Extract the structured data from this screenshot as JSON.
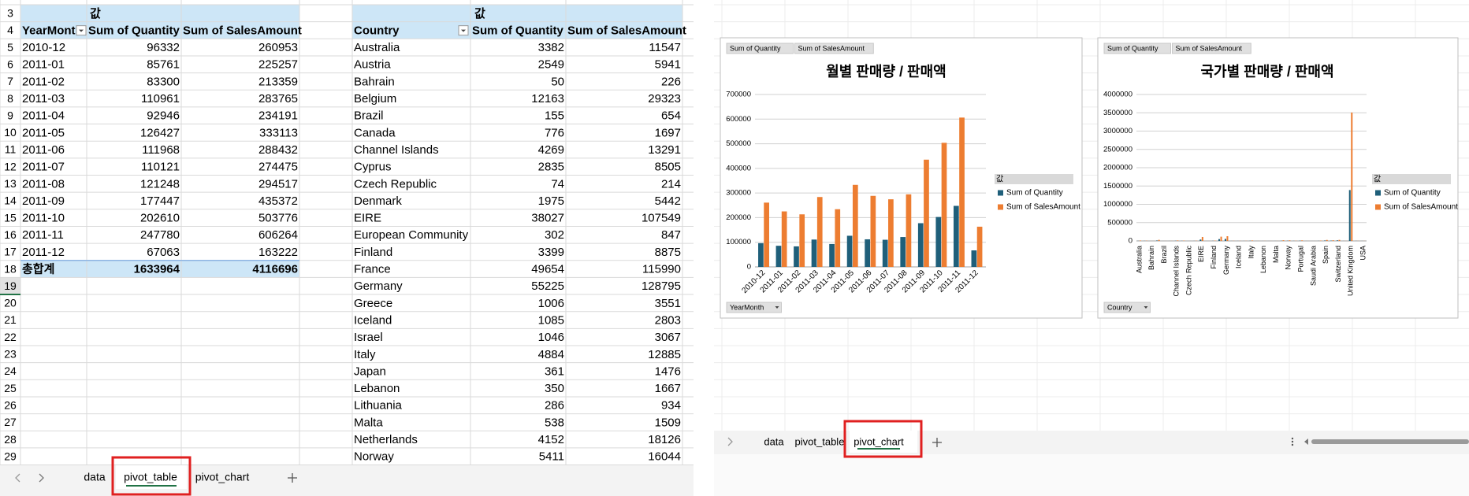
{
  "sheet": {
    "row_numbers": [
      3,
      4,
      5,
      6,
      7,
      8,
      9,
      10,
      11,
      12,
      13,
      14,
      15,
      16,
      17,
      18,
      19,
      20,
      21,
      22,
      23,
      24,
      25,
      26,
      27,
      28,
      29
    ],
    "pivot1": {
      "values_caption": "값",
      "headers": [
        "YearMont",
        "Sum of Quantity",
        "Sum of SalesAmount"
      ],
      "rows": [
        [
          "2010-12",
          96332,
          260953
        ],
        [
          "2011-01",
          85761,
          225257
        ],
        [
          "2011-02",
          83300,
          213359
        ],
        [
          "2011-03",
          110961,
          283765
        ],
        [
          "2011-04",
          92946,
          234191
        ],
        [
          "2011-05",
          126427,
          333113
        ],
        [
          "2011-06",
          111968,
          288432
        ],
        [
          "2011-07",
          110121,
          274475
        ],
        [
          "2011-08",
          121248,
          294517
        ],
        [
          "2011-09",
          177447,
          435372
        ],
        [
          "2011-10",
          202610,
          503776
        ],
        [
          "2011-11",
          247780,
          606264
        ],
        [
          "2011-12",
          67063,
          163222
        ]
      ],
      "total": [
        "총합계",
        1633964,
        4116696
      ]
    },
    "pivot2": {
      "values_caption": "값",
      "headers": [
        "Country",
        "Sum of Quantity",
        "Sum of SalesAmount"
      ],
      "rows": [
        [
          "Australia",
          3382,
          11547
        ],
        [
          "Austria",
          2549,
          5941
        ],
        [
          "Bahrain",
          50,
          226
        ],
        [
          "Belgium",
          12163,
          29323
        ],
        [
          "Brazil",
          155,
          654
        ],
        [
          "Canada",
          776,
          1697
        ],
        [
          "Channel Islands",
          4269,
          13291
        ],
        [
          "Cyprus",
          2835,
          8505
        ],
        [
          "Czech Republic",
          74,
          214
        ],
        [
          "Denmark",
          1975,
          5442
        ],
        [
          "EIRE",
          38027,
          107549
        ],
        [
          "European Community",
          302,
          847
        ],
        [
          "Finland",
          3399,
          8875
        ],
        [
          "France",
          49654,
          115990
        ],
        [
          "Germany",
          55225,
          128795
        ],
        [
          "Greece",
          1006,
          3551
        ],
        [
          "Iceland",
          1085,
          2803
        ],
        [
          "Israel",
          1046,
          3067
        ],
        [
          "Italy",
          4884,
          12885
        ],
        [
          "Japan",
          361,
          1476
        ],
        [
          "Lebanon",
          350,
          1667
        ],
        [
          "Lithuania",
          286,
          934
        ],
        [
          "Malta",
          538,
          1509
        ],
        [
          "Netherlands",
          4152,
          18126
        ],
        [
          "Norway",
          5411,
          16044
        ]
      ]
    },
    "tabs": [
      "data",
      "pivot_table",
      "pivot_chart"
    ]
  },
  "chart_view": {
    "tabs": [
      "data",
      "pivot_table",
      "pivot_chart"
    ]
  },
  "chart_data": [
    {
      "type": "bar",
      "title": "월별 판매량 / 판매액",
      "field_buttons": [
        "Sum of Quantity",
        "Sum of SalesAmount"
      ],
      "axis_button": "YearMonth",
      "legend_title": "값",
      "categories": [
        "2010-12",
        "2011-01",
        "2011-02",
        "2011-03",
        "2011-04",
        "2011-05",
        "2011-06",
        "2011-07",
        "2011-08",
        "2011-09",
        "2011-10",
        "2011-11",
        "2011-12"
      ],
      "series": [
        {
          "name": "Sum of Quantity",
          "color": "#1f5f7a",
          "values": [
            96332,
            85761,
            83300,
            110961,
            92946,
            126427,
            111968,
            110121,
            121248,
            177447,
            202610,
            247780,
            67063
          ]
        },
        {
          "name": "Sum of SalesAmount",
          "color": "#ed7d31",
          "values": [
            260953,
            225257,
            213359,
            283765,
            234191,
            333113,
            288432,
            274475,
            294517,
            435372,
            503776,
            606264,
            163222
          ]
        }
      ],
      "ylim": [
        0,
        700000
      ],
      "yticks": [
        0,
        100000,
        200000,
        300000,
        400000,
        500000,
        600000,
        700000
      ],
      "grid": true
    },
    {
      "type": "bar",
      "title": "국가별 판매량 / 판매액",
      "field_buttons": [
        "Sum of Quantity",
        "Sum of SalesAmount"
      ],
      "axis_button": "Country",
      "legend_title": "값",
      "categories": [
        "Australia",
        null,
        "Bahrain",
        null,
        "Brazil",
        null,
        "Channel Islands",
        null,
        "Czech Republic",
        null,
        "EIRE",
        null,
        "Finland",
        null,
        "Germany",
        null,
        "Iceland",
        null,
        "Italy",
        null,
        "Lebanon",
        null,
        "Malta",
        null,
        "Norway",
        null,
        "Portugal",
        null,
        "Saudi Arabia",
        null,
        "Spain",
        null,
        "Switzerland",
        null,
        "United Kingdom",
        null,
        "USA"
      ],
      "series": [
        {
          "name": "Sum of Quantity",
          "color": "#1f5f7a",
          "values": [
            3382,
            2549,
            50,
            12163,
            155,
            776,
            4269,
            2835,
            74,
            1975,
            38027,
            302,
            3399,
            49654,
            55225,
            1006,
            1085,
            1046,
            4884,
            361,
            350,
            286,
            538,
            4152,
            5411,
            2500,
            6500,
            350,
            80,
            2500,
            12000,
            8000,
            15000,
            900,
            1389380,
            1800,
            1000
          ]
        },
        {
          "name": "Sum of SalesAmount",
          "color": "#ed7d31",
          "values": [
            11547,
            5941,
            226,
            29323,
            654,
            1697,
            13291,
            8505,
            214,
            5442,
            107549,
            847,
            8875,
            115990,
            128795,
            3551,
            2803,
            3067,
            12885,
            1476,
            1667,
            934,
            1509,
            18126,
            16044,
            5000,
            15000,
            1000,
            130,
            9000,
            27000,
            18000,
            28000,
            1900,
            3506408,
            2600,
            1700
          ]
        }
      ],
      "ylim": [
        0,
        4000000
      ],
      "yticks": [
        0,
        500000,
        1000000,
        1500000,
        2000000,
        2500000,
        3000000,
        3500000,
        4000000
      ],
      "grid": true
    }
  ]
}
